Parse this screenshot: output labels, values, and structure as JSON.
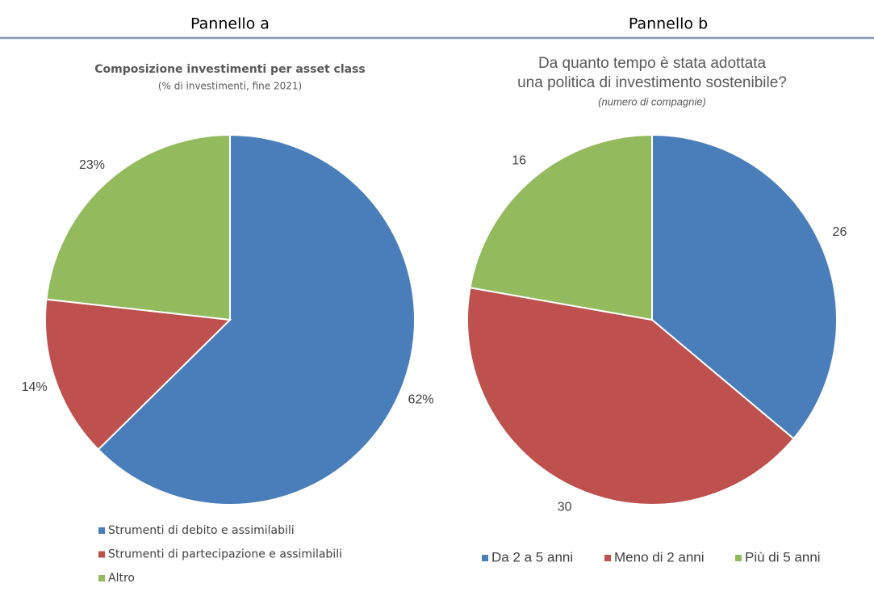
{
  "panels": [
    {
      "heading": "Pannello a",
      "chart_data": {
        "type": "pie",
        "title": "Composizione investimenti per asset class",
        "subtitle": "(% di investimenti, fine 2021)",
        "categories": [
          "Strumenti di debito e assimilabili",
          "Strumenti di partecipazione e assimilabili",
          "Altro"
        ],
        "values": [
          62,
          14,
          23
        ],
        "value_labels": [
          "62%",
          "14%",
          "23%"
        ],
        "colors": [
          "#4a7ebb",
          "#be504d",
          "#93bb5e"
        ],
        "legend": "bottom-left"
      }
    },
    {
      "heading": "Pannello b",
      "chart_data": {
        "type": "pie",
        "title": [
          "Da quanto tempo è stata adottata",
          "una politica di investimento sostenibile?"
        ],
        "subtitle": "(numero di compagnie)",
        "categories": [
          "Da 2 a 5 anni",
          "Meno di 2 anni",
          "Più di 5 anni"
        ],
        "values": [
          26,
          30,
          16
        ],
        "colors": [
          "#4a7ebb",
          "#be504d",
          "#93bb5e"
        ],
        "legend": "bottom"
      }
    }
  ]
}
